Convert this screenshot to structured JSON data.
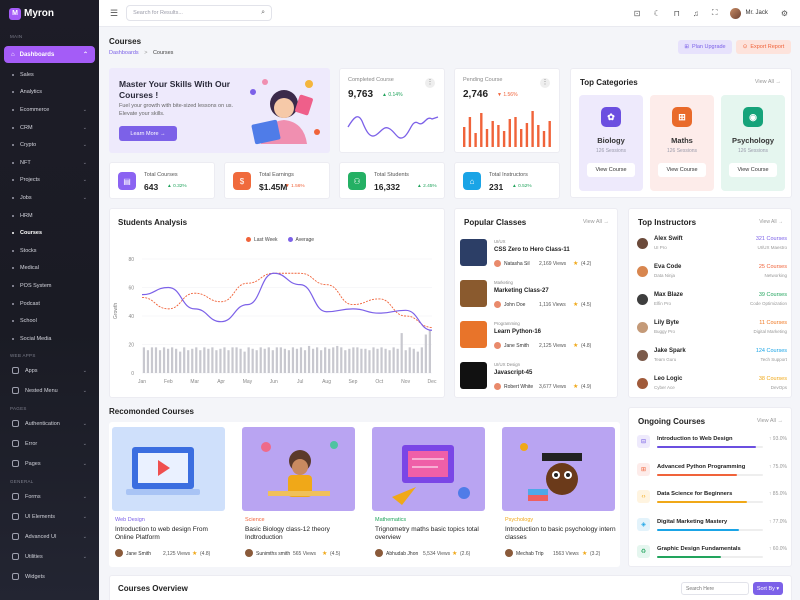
{
  "app": {
    "name": "Myron",
    "logo_letter": "M"
  },
  "sidebar": {
    "section_main": "MAIN",
    "dashboards": "Dashboards",
    "items": [
      "Sales",
      "Analytics",
      "Ecommerce",
      "CRM",
      "Crypto",
      "NFT",
      "Projects",
      "Jobs",
      "HRM",
      "Courses",
      "Stocks",
      "Medical",
      "POS System",
      "Podcast",
      "School",
      "Social Media"
    ],
    "section_web_apps": "WEB APPS",
    "apps": "Apps",
    "nested": "Nested Menu",
    "section_pages": "PAGES",
    "auth": "Authentication",
    "error": "Error",
    "pages": "Pages",
    "section_general": "GENERAL",
    "forms": "Forms",
    "ui": "UI Elements",
    "adv": "Advanced UI",
    "util": "Utilities",
    "widgets": "Widgets"
  },
  "header": {
    "search_placeholder": "Search for Results...",
    "user": "Mr. Jack"
  },
  "page": {
    "title": "Courses",
    "crumb_home": "Dashboards",
    "crumb_sep": ">",
    "crumb_current": "Courses",
    "plan_btn": "Plan Upgrade",
    "export_btn": "Export Report"
  },
  "hero": {
    "title": "Master Your Skills With Our Courses !",
    "text": "Fuel your growth with bite-sized lessons on us. Elevate your skills.",
    "btn": "Learn More →"
  },
  "completed": {
    "label": "Completed Course",
    "value": "9,763",
    "change": "▲ 0.14%"
  },
  "pending": {
    "label": "Pending Course",
    "value": "2,746",
    "change": "▼ 1.56%"
  },
  "stats": [
    {
      "label": "Total Courses",
      "value": "643",
      "change": "▲ 0.32%",
      "color": "#8b63f2"
    },
    {
      "label": "Total Earnings",
      "value": "$1.45M",
      "change": "▼ 1.56%",
      "color": "#f06a3c"
    },
    {
      "label": "Total Students",
      "value": "16,332",
      "change": "▲ 2.45%",
      "color": "#24b064"
    },
    {
      "label": "Total Instructors",
      "value": "231",
      "change": "▲ 0.52%",
      "color": "#1aa4e6"
    }
  ],
  "top_categories": {
    "title": "Top Categories",
    "view": "View All →",
    "items": [
      {
        "name": "Biology",
        "sessions": "126 Sessions",
        "btn": "View Course",
        "bg": "#eeeafc",
        "ic": "#6b4fe0"
      },
      {
        "name": "Maths",
        "sessions": "126 Sessions",
        "btn": "View Course",
        "bg": "#fdecea",
        "ic": "#e96a2a"
      },
      {
        "name": "Psychology",
        "sessions": "126 Sessions",
        "btn": "View Course",
        "bg": "#e5f6ef",
        "ic": "#16a37a"
      }
    ]
  },
  "students_analysis": {
    "title": "Students Analysis",
    "legend_last": "Last Week",
    "legend_avg": "Average",
    "ylabel": "Growth"
  },
  "chart_data": {
    "type": "line",
    "categories": [
      "Jan",
      "Feb",
      "Mar",
      "Apr",
      "May",
      "Jun",
      "Jul",
      "Aug",
      "Sep",
      "Oct",
      "Nov",
      "Dec"
    ],
    "ylim": [
      0,
      80
    ],
    "yticks": [
      0,
      20,
      40,
      60,
      80
    ],
    "series": [
      {
        "name": "Last Week",
        "values": [
          53,
          45,
          56,
          50,
          63,
          70,
          70,
          62,
          48,
          52,
          40,
          32
        ],
        "color": "#f0633a",
        "dashed": true
      },
      {
        "name": "Average",
        "values": [
          55,
          60,
          45,
          36,
          48,
          70,
          62,
          43,
          45,
          42,
          44,
          30
        ],
        "color": "#7c61e8"
      }
    ],
    "bars": [
      18,
      16,
      18,
      18,
      16,
      18,
      17,
      18,
      17,
      15,
      18,
      16,
      17,
      18,
      16,
      18,
      17,
      18,
      16,
      17,
      18,
      16,
      18,
      18,
      17,
      15,
      18,
      17,
      16,
      18,
      17,
      18,
      16,
      18,
      18,
      17,
      16,
      18,
      17,
      18,
      16,
      19,
      17,
      18,
      16,
      18,
      17,
      18,
      19,
      18,
      16,
      17,
      18,
      18,
      17,
      17,
      16,
      18,
      17,
      18,
      17,
      16,
      18,
      17,
      28,
      16,
      18,
      17,
      15,
      18,
      27,
      30
    ],
    "legend": "top-center"
  },
  "popular": {
    "title": "Popular Classes",
    "view": "View All →",
    "items": [
      {
        "cat": "UI/UX",
        "name": "CSS Zero to Hero Class-11",
        "author": "Natasha Sil",
        "views": "2,169 Views",
        "rating": "(4.2)"
      },
      {
        "cat": "Marketing",
        "name": "Marketing Class-27",
        "author": "John Doe",
        "views": "1,116 Views",
        "rating": "(4.5)"
      },
      {
        "cat": "Programming",
        "name": "Learn Python-16",
        "author": "Jane Smith",
        "views": "2,125 Views",
        "rating": "(4.8)"
      },
      {
        "cat": "UI/UX Design",
        "name": "Javascript-45",
        "author": "Robert White",
        "views": "3,677 Views",
        "rating": "(4.9)"
      }
    ]
  },
  "instructors": {
    "title": "Top Instructors",
    "view": "View All →",
    "items": [
      {
        "name": "Alex Swift",
        "role": "UI Pro",
        "count": "321 Courses",
        "sub": "UI/UX Maestro",
        "color": "#7c61e8"
      },
      {
        "name": "Eva Code",
        "role": "Data Ninja",
        "count": "25 Courses",
        "sub": "Networking",
        "color": "#f0633a"
      },
      {
        "name": "Max Blaze",
        "role": "Elfin Pro",
        "count": "39 Courses",
        "sub": "Code Optimization",
        "color": "#22a45d"
      },
      {
        "name": "Lily Byte",
        "role": "Buggy Pro",
        "count": "11 Courses",
        "sub": "Digital Marketing",
        "color": "#f07822"
      },
      {
        "name": "Jake Spark",
        "role": "Team Guru",
        "count": "124 Courses",
        "sub": "Tech Support",
        "color": "#1aa4e6"
      },
      {
        "name": "Leo Logic",
        "role": "Cyber Ace",
        "count": "38 Courses",
        "sub": "DevOps",
        "color": "#f0a818"
      }
    ]
  },
  "recommended": {
    "title": "Recomonded Courses",
    "items": [
      {
        "cat": "Web Design",
        "name": "Introduction to web design From Online Platform",
        "author": "Jane Smith",
        "views": "2,125 Views",
        "rating": "(4.8)",
        "catColor": "#7c61e8",
        "bg": "#cfe0fb"
      },
      {
        "cat": "Science",
        "name": "Basic Biology class-12 theory Indtroduction",
        "author": "Sunimths smith",
        "views": "565 Views",
        "rating": "(4.5)",
        "catColor": "#f0633a",
        "bg": "#b9a4f2"
      },
      {
        "cat": "Mathematics",
        "name": "Trignometry maths basic topics total overview",
        "author": "Abhudab Jhon",
        "views": "5,534 Views",
        "rating": "(2.6)",
        "catColor": "#22a45d",
        "bg": "#b9a4f2"
      },
      {
        "cat": "Psychology",
        "name": "Introduction to basic psychology intern classes",
        "author": "Mechab Trip",
        "views": "1563 Views",
        "rating": "(3.2)",
        "catColor": "#f0a818",
        "bg": "#b9a4f2"
      }
    ]
  },
  "ongoing": {
    "title": "Ongoing Courses",
    "view": "View All →",
    "items": [
      {
        "name": "Introduction to Web Design",
        "pct": "↑ 93.0%",
        "progress": 0.93,
        "color": "#6b4fe0",
        "bg": "#eeeafc"
      },
      {
        "name": "Advanced Python Programming",
        "pct": "↑ 75.0%",
        "progress": 0.75,
        "color": "#f0633a",
        "bg": "#fdecea"
      },
      {
        "name": "Data Science for Beginners",
        "pct": "↑ 85.0%",
        "progress": 0.85,
        "color": "#f0a818",
        "bg": "#fff4e0"
      },
      {
        "name": "Digital Marketing Mastery",
        "pct": "↑ 77.0%",
        "progress": 0.77,
        "color": "#1aa4e6",
        "bg": "#e3f3fb"
      },
      {
        "name": "Graphic Design Fundamentals",
        "pct": "↑ 60.0%",
        "progress": 0.6,
        "color": "#22a45d",
        "bg": "#e5f6ef"
      }
    ]
  },
  "overview": {
    "title": "Courses Overview",
    "search_placeholder": "Search Here",
    "sort": "Sort By ▾"
  }
}
